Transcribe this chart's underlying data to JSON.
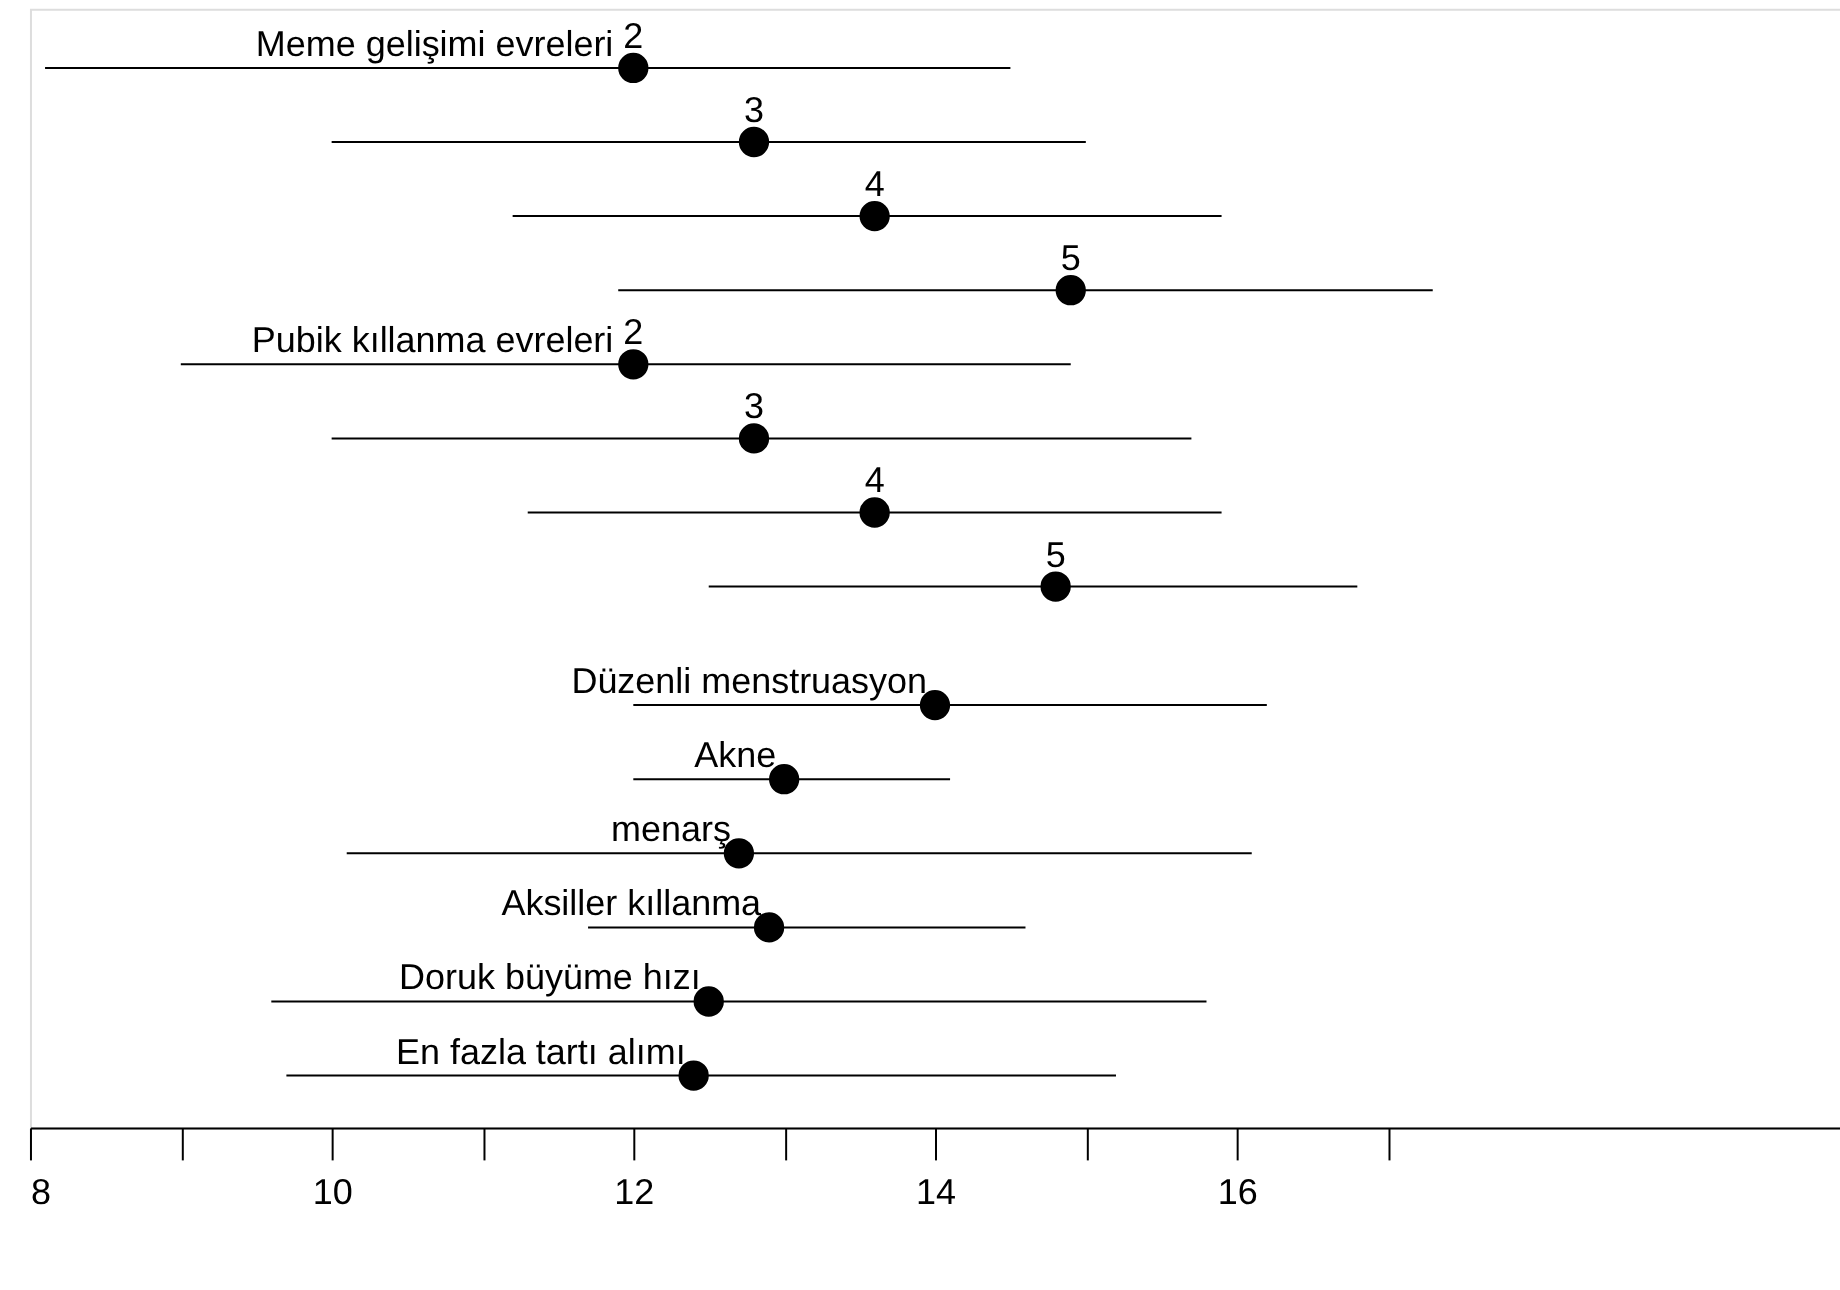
{
  "chart_data": {
    "type": "scatter",
    "orientation": "horizontal",
    "marker": "circle",
    "color": "#000000",
    "grid": false,
    "categories": [
      null,
      null,
      null,
      null,
      null,
      null,
      null,
      null,
      "Düzenli menstruasyon",
      "Akne",
      "menarş",
      "Aksiller kıllanma",
      "Doruk büyüme hızı",
      "En fazla tartı alımı"
    ],
    "values": [
      12.0,
      12.8,
      13.6,
      14.9,
      12.0,
      12.8,
      13.6,
      14.8,
      14.0,
      13.0,
      12.7,
      12.9,
      12.5,
      12.4
    ],
    "errors": [
      [
        8.1,
        14.5
      ],
      [
        10.0,
        15.0
      ],
      [
        11.2,
        15.9
      ],
      [
        11.9,
        17.3
      ],
      [
        9.0,
        14.9
      ],
      [
        10.0,
        15.7
      ],
      [
        11.3,
        15.9
      ],
      [
        12.5,
        16.8
      ],
      [
        12.0,
        16.2
      ],
      [
        12.0,
        14.1
      ],
      [
        10.1,
        16.1
      ],
      [
        11.7,
        14.6
      ],
      [
        9.6,
        15.8
      ],
      [
        9.7,
        15.2
      ]
    ],
    "annotations": [
      "Meme gelişimi evreleri",
      "2",
      "3",
      "4",
      "5",
      "Pubik kıllanma evreleri",
      "2",
      "3",
      "4",
      "5"
    ],
    "xlim": [
      8,
      20
    ],
    "xticks": [
      8,
      {
        "value": 9,
        "label": null
      },
      10,
      {
        "value": 11,
        "label": null
      },
      12,
      {
        "value": 13,
        "label": null
      },
      14,
      {
        "value": 15,
        "label": null
      },
      16,
      {
        "value": 17,
        "label": null
      }
    ]
  }
}
